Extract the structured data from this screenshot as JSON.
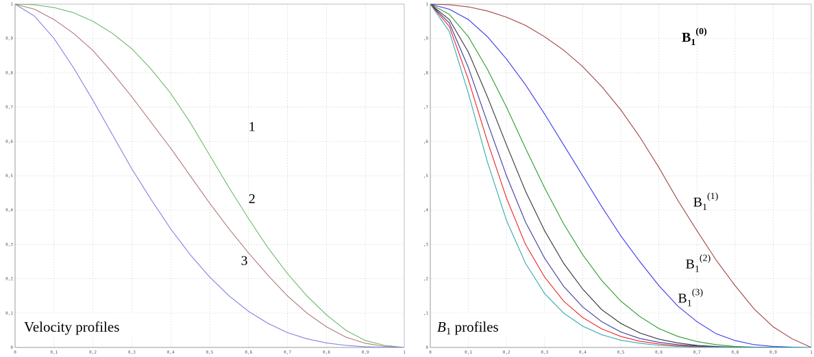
{
  "chart_data": [
    {
      "type": "line",
      "title": "",
      "caption": "Velocity profiles",
      "xlabel": "",
      "ylabel": "",
      "xlim": [
        0,
        1
      ],
      "ylim": [
        0,
        1
      ],
      "grid": true,
      "x_ticks": [
        "0",
        "0,1",
        "0,2",
        "0,3",
        "0,4",
        "0,5",
        "0,6",
        "0,7",
        "0,8",
        "0,9",
        "1"
      ],
      "y_ticks": [
        "0",
        "0,1",
        "0,2",
        "0,3",
        "0,4",
        "0,5",
        "0,6",
        "0,7",
        "0,8",
        "0,9",
        "1"
      ],
      "x": [
        0,
        0.05,
        0.1,
        0.15,
        0.2,
        0.25,
        0.3,
        0.35,
        0.4,
        0.45,
        0.5,
        0.55,
        0.6,
        0.65,
        0.7,
        0.75,
        0.8,
        0.85,
        0.9,
        0.95,
        1.0
      ],
      "series": [
        {
          "color": "#6aba6a",
          "values": [
            1.0,
            0.998,
            0.99,
            0.975,
            0.95,
            0.915,
            0.87,
            0.81,
            0.74,
            0.655,
            0.56,
            0.465,
            0.375,
            0.29,
            0.215,
            0.15,
            0.095,
            0.05,
            0.02,
            0.006,
            0.0
          ]
        },
        {
          "color": "#b07878",
          "values": [
            1.0,
            0.985,
            0.955,
            0.915,
            0.865,
            0.8,
            0.73,
            0.655,
            0.58,
            0.5,
            0.42,
            0.345,
            0.275,
            0.21,
            0.15,
            0.1,
            0.06,
            0.03,
            0.012,
            0.003,
            0.0
          ]
        },
        {
          "color": "#8080e0",
          "values": [
            1.0,
            0.965,
            0.9,
            0.815,
            0.72,
            0.62,
            0.52,
            0.43,
            0.345,
            0.27,
            0.205,
            0.15,
            0.105,
            0.07,
            0.043,
            0.025,
            0.013,
            0.006,
            0.002,
            0.0005,
            0.0
          ]
        }
      ],
      "annotations": [
        {
          "text": "1",
          "x": 0.6,
          "y": 0.63
        },
        {
          "text": "2",
          "x": 0.6,
          "y": 0.42
        },
        {
          "text": "3",
          "x": 0.58,
          "y": 0.24
        }
      ]
    },
    {
      "type": "line",
      "title": "",
      "caption_symbol": "B",
      "caption_subscript": "1",
      "caption_rest": " profiles",
      "xlabel": "",
      "ylabel": "",
      "xlim": [
        0,
        1
      ],
      "ylim": [
        0,
        1
      ],
      "grid": true,
      "x_ticks": [
        "0",
        "0,1",
        "0,2",
        "0,3",
        "0,4",
        "0,5",
        "0,6",
        "0,7",
        "0,8",
        "0,9",
        "1"
      ],
      "y_ticks": [
        "0",
        "0,1",
        "0,2",
        "0,3",
        "0,4",
        "0,5",
        "0,6",
        "0,7",
        "0,8",
        "0,9",
        "1"
      ],
      "x": [
        0,
        0.05,
        0.1,
        0.15,
        0.2,
        0.25,
        0.3,
        0.35,
        0.4,
        0.45,
        0.5,
        0.55,
        0.6,
        0.65,
        0.7,
        0.75,
        0.8,
        0.85,
        0.9,
        0.95,
        1.0
      ],
      "series": [
        {
          "color": "#a04040",
          "values": [
            1.0,
            0.998,
            0.992,
            0.98,
            0.962,
            0.938,
            0.905,
            0.866,
            0.818,
            0.76,
            0.692,
            0.613,
            0.524,
            0.428,
            0.34,
            0.255,
            0.18,
            0.112,
            0.06,
            0.025,
            0.0
          ]
        },
        {
          "color": "#3535ee",
          "values": [
            1.0,
            0.985,
            0.955,
            0.905,
            0.84,
            0.765,
            0.68,
            0.59,
            0.5,
            0.41,
            0.325,
            0.25,
            0.18,
            0.12,
            0.075,
            0.04,
            0.02,
            0.008,
            0.003,
            0.0008,
            0.0
          ]
        },
        {
          "color": "#2a9a2a",
          "values": [
            1.0,
            0.97,
            0.905,
            0.81,
            0.7,
            0.58,
            0.465,
            0.36,
            0.27,
            0.195,
            0.135,
            0.09,
            0.055,
            0.032,
            0.017,
            0.008,
            0.003,
            0.001,
            0.0003,
            0.0001,
            0.0
          ]
        },
        {
          "color": "#333333",
          "values": [
            1.0,
            0.955,
            0.86,
            0.73,
            0.59,
            0.455,
            0.34,
            0.245,
            0.17,
            0.11,
            0.07,
            0.042,
            0.024,
            0.013,
            0.006,
            0.003,
            0.001,
            0.0005,
            0.0002,
            0.0,
            0.0
          ]
        },
        {
          "color": "#3a3aa0",
          "values": [
            1.0,
            0.945,
            0.815,
            0.655,
            0.5,
            0.365,
            0.26,
            0.178,
            0.118,
            0.075,
            0.045,
            0.026,
            0.015,
            0.008,
            0.004,
            0.002,
            0.0008,
            0.0003,
            0.0001,
            0.0,
            0.0
          ]
        },
        {
          "color": "#ee2222",
          "values": [
            1.0,
            0.935,
            0.78,
            0.6,
            0.435,
            0.3,
            0.205,
            0.135,
            0.087,
            0.054,
            0.032,
            0.018,
            0.01,
            0.005,
            0.0025,
            0.0012,
            0.0005,
            0.0002,
            0.0,
            0.0,
            0.0
          ]
        },
        {
          "color": "#33aaaa",
          "values": [
            1.0,
            0.92,
            0.74,
            0.54,
            0.37,
            0.245,
            0.157,
            0.1,
            0.062,
            0.037,
            0.021,
            0.012,
            0.006,
            0.003,
            0.0015,
            0.0007,
            0.0003,
            0.0001,
            0.0,
            0.0,
            0.0
          ]
        }
      ],
      "annotations": [
        {
          "base": "B",
          "sub": "1",
          "sup": "(0)",
          "bold": true,
          "x": 0.66,
          "y": 0.89
        },
        {
          "base": "B",
          "sub": "1",
          "sup": "(1)",
          "bold": false,
          "x": 0.69,
          "y": 0.41
        },
        {
          "base": "B",
          "sub": "1",
          "sup": "(2)",
          "bold": false,
          "x": 0.67,
          "y": 0.23
        },
        {
          "base": "B",
          "sub": "1",
          "sup": "(3)",
          "bold": false,
          "x": 0.65,
          "y": 0.13
        }
      ]
    }
  ]
}
